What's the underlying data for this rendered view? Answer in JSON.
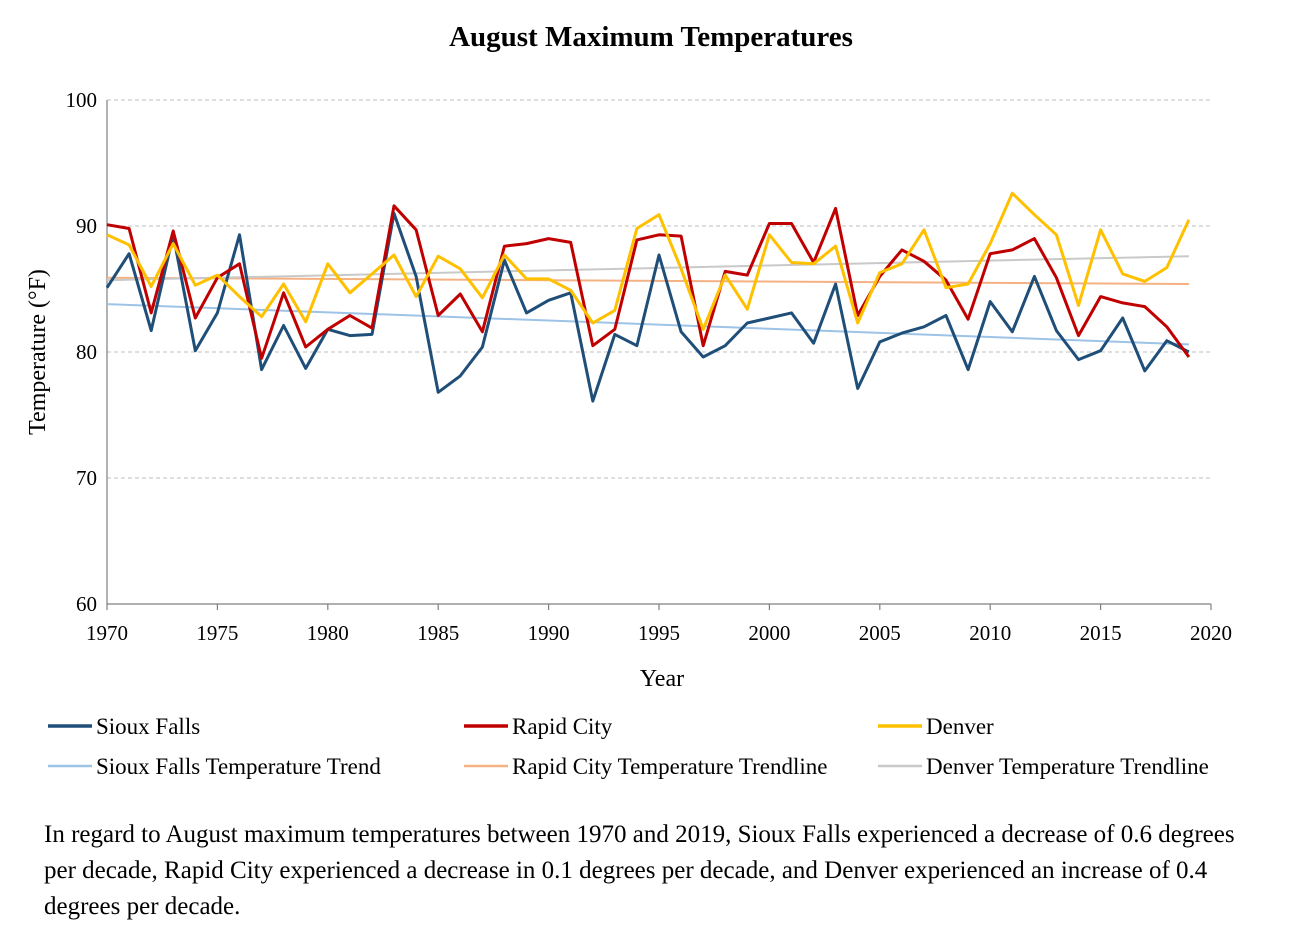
{
  "chart_data": {
    "type": "line",
    "title": "August Maximum Temperatures",
    "xlabel": "Year",
    "ylabel": "Temperature (°F)",
    "xlim": [
      1970,
      2020
    ],
    "ylim": [
      60,
      100
    ],
    "x_ticks": [
      1970,
      1975,
      1980,
      1985,
      1990,
      1995,
      2000,
      2005,
      2010,
      2015,
      2020
    ],
    "y_ticks": [
      60,
      70,
      80,
      90,
      100
    ],
    "grid": "horizontal dashed",
    "legend_position": "bottom",
    "x": [
      1970,
      1971,
      1972,
      1973,
      1974,
      1975,
      1976,
      1977,
      1978,
      1979,
      1980,
      1981,
      1982,
      1983,
      1984,
      1985,
      1986,
      1987,
      1988,
      1989,
      1990,
      1991,
      1992,
      1993,
      1994,
      1995,
      1996,
      1997,
      1998,
      1999,
      2000,
      2001,
      2002,
      2003,
      2004,
      2005,
      2006,
      2007,
      2008,
      2009,
      2010,
      2011,
      2012,
      2013,
      2014,
      2015,
      2016,
      2017,
      2018,
      2019
    ],
    "series": [
      {
        "name": "Sioux Falls",
        "color": "#1f4e79",
        "width": 3,
        "values": [
          85.1,
          87.8,
          81.7,
          89.3,
          80.1,
          83.1,
          89.3,
          78.6,
          82.1,
          78.7,
          81.8,
          81.3,
          81.4,
          91.0,
          86.0,
          76.8,
          78.1,
          80.4,
          87.3,
          83.1,
          84.1,
          84.7,
          76.1,
          81.4,
          80.5,
          87.7,
          81.6,
          79.6,
          80.5,
          82.3,
          82.7,
          83.1,
          80.7,
          85.4,
          77.1,
          80.8,
          81.5,
          82.0,
          82.9,
          78.6,
          84.0,
          81.6,
          86.0,
          81.7,
          79.4,
          80.1,
          82.7,
          78.5,
          80.9,
          80.0
        ]
      },
      {
        "name": "Rapid City",
        "color": "#c00000",
        "width": 3,
        "values": [
          90.1,
          89.8,
          83.1,
          89.6,
          82.7,
          85.9,
          87.0,
          79.5,
          84.7,
          80.4,
          81.8,
          82.9,
          81.9,
          91.6,
          89.7,
          82.9,
          84.6,
          81.6,
          88.4,
          88.6,
          89.0,
          88.7,
          80.5,
          81.8,
          88.9,
          89.3,
          89.2,
          80.5,
          86.4,
          86.1,
          90.2,
          90.2,
          87.1,
          91.4,
          82.9,
          86.0,
          88.1,
          87.2,
          85.7,
          82.6,
          87.8,
          88.1,
          89.0,
          85.9,
          81.3,
          84.4,
          83.9,
          83.6,
          82.0,
          79.6
        ]
      },
      {
        "name": "Denver",
        "color": "#ffc000",
        "width": 3,
        "values": [
          89.3,
          88.5,
          85.2,
          88.6,
          85.3,
          86.1,
          84.4,
          82.8,
          85.4,
          82.4,
          87.0,
          84.7,
          86.2,
          87.7,
          84.4,
          87.6,
          86.6,
          84.3,
          87.7,
          85.8,
          85.8,
          84.9,
          82.3,
          83.3,
          89.8,
          90.9,
          86.6,
          81.8,
          86.1,
          83.4,
          89.3,
          87.1,
          87.0,
          88.4,
          82.3,
          86.3,
          87.0,
          89.7,
          85.1,
          85.4,
          88.6,
          92.6,
          90.9,
          89.3,
          83.7,
          89.7,
          86.2,
          85.6,
          86.7,
          90.5
        ]
      },
      {
        "name": "Sioux Falls Temperature Trend",
        "color": "#9dc3e6",
        "width": 2,
        "trend": true,
        "values_at_ends": [
          83.8,
          80.6
        ]
      },
      {
        "name": "Rapid City Temperature Trendline",
        "color": "#f4b183",
        "width": 2,
        "trend": true,
        "values_at_ends": [
          85.9,
          85.4
        ]
      },
      {
        "name": "Denver Temperature Trendline",
        "color": "#c9c9c9",
        "width": 2,
        "trend": true,
        "values_at_ends": [
          85.7,
          87.6
        ]
      }
    ]
  },
  "caption": "In regard to August maximum temperatures between 1970 and 2019, Sioux Falls experienced a decrease of 0.6 degrees per decade, Rapid City experienced a decrease in 0.1 degrees per decade, and Denver experienced an increase of 0.4 degrees per decade."
}
